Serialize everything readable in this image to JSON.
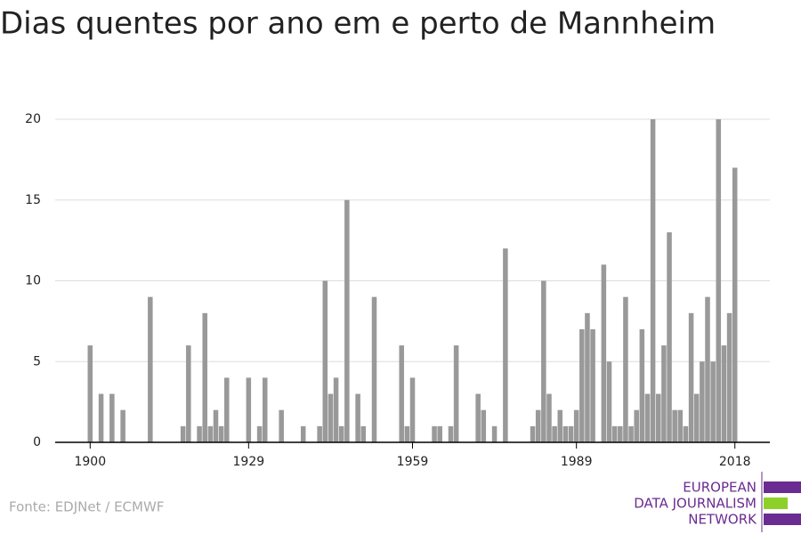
{
  "chart_data": {
    "type": "bar",
    "title": "Dias quentes por ano em e perto de Mannheim",
    "source": "Fonte: EDJNet / ECMWF",
    "logo": [
      "EUROPEAN",
      "DATA JOURNALISM",
      "NETWORK"
    ],
    "color": "#999999",
    "x": [
      1900,
      1901,
      1902,
      1903,
      1904,
      1905,
      1906,
      1907,
      1908,
      1909,
      1910,
      1911,
      1912,
      1913,
      1914,
      1915,
      1916,
      1917,
      1918,
      1919,
      1920,
      1921,
      1922,
      1923,
      1924,
      1925,
      1926,
      1927,
      1928,
      1929,
      1930,
      1931,
      1932,
      1933,
      1934,
      1935,
      1936,
      1937,
      1938,
      1939,
      1940,
      1941,
      1942,
      1943,
      1944,
      1945,
      1946,
      1947,
      1948,
      1949,
      1950,
      1951,
      1952,
      1953,
      1954,
      1955,
      1956,
      1957,
      1958,
      1959,
      1960,
      1961,
      1962,
      1963,
      1964,
      1965,
      1966,
      1967,
      1968,
      1969,
      1970,
      1971,
      1972,
      1973,
      1974,
      1975,
      1976,
      1977,
      1978,
      1979,
      1980,
      1981,
      1982,
      1983,
      1984,
      1985,
      1986,
      1987,
      1988,
      1989,
      1990,
      1991,
      1992,
      1993,
      1994,
      1995,
      1996,
      1997,
      1998,
      1999,
      2000,
      2001,
      2002,
      2003,
      2004,
      2005,
      2006,
      2007,
      2008,
      2009,
      2010,
      2011,
      2012,
      2013,
      2014,
      2015,
      2016,
      2017,
      2018
    ],
    "values": [
      6,
      0,
      3,
      0,
      3,
      0,
      2,
      0,
      0,
      0,
      0,
      9,
      0,
      0,
      0,
      0,
      0,
      1,
      6,
      0,
      1,
      8,
      1,
      2,
      1,
      4,
      0,
      0,
      0,
      4,
      0,
      1,
      4,
      0,
      0,
      2,
      0,
      0,
      0,
      1,
      0,
      0,
      1,
      10,
      3,
      4,
      1,
      15,
      0,
      3,
      1,
      0,
      9,
      0,
      0,
      0,
      0,
      6,
      1,
      4,
      0,
      0,
      0,
      1,
      1,
      0,
      1,
      6,
      0,
      0,
      0,
      3,
      2,
      0,
      1,
      0,
      12,
      0,
      0,
      0,
      0,
      1,
      2,
      10,
      3,
      1,
      2,
      1,
      1,
      2,
      7,
      8,
      7,
      0,
      11,
      5,
      1,
      1,
      9,
      1,
      2,
      7,
      3,
      20,
      3,
      6,
      13,
      2,
      2,
      1,
      8,
      3,
      5,
      9,
      5,
      20,
      6,
      8,
      17
    ],
    "xlim": [
      1893.6,
      2024.4
    ],
    "xticks": [
      1900,
      1929,
      1959,
      1989,
      2018
    ],
    "ylim": [
      0,
      20
    ],
    "yticks": [
      0,
      5,
      10,
      15,
      20
    ],
    "grid": true
  }
}
